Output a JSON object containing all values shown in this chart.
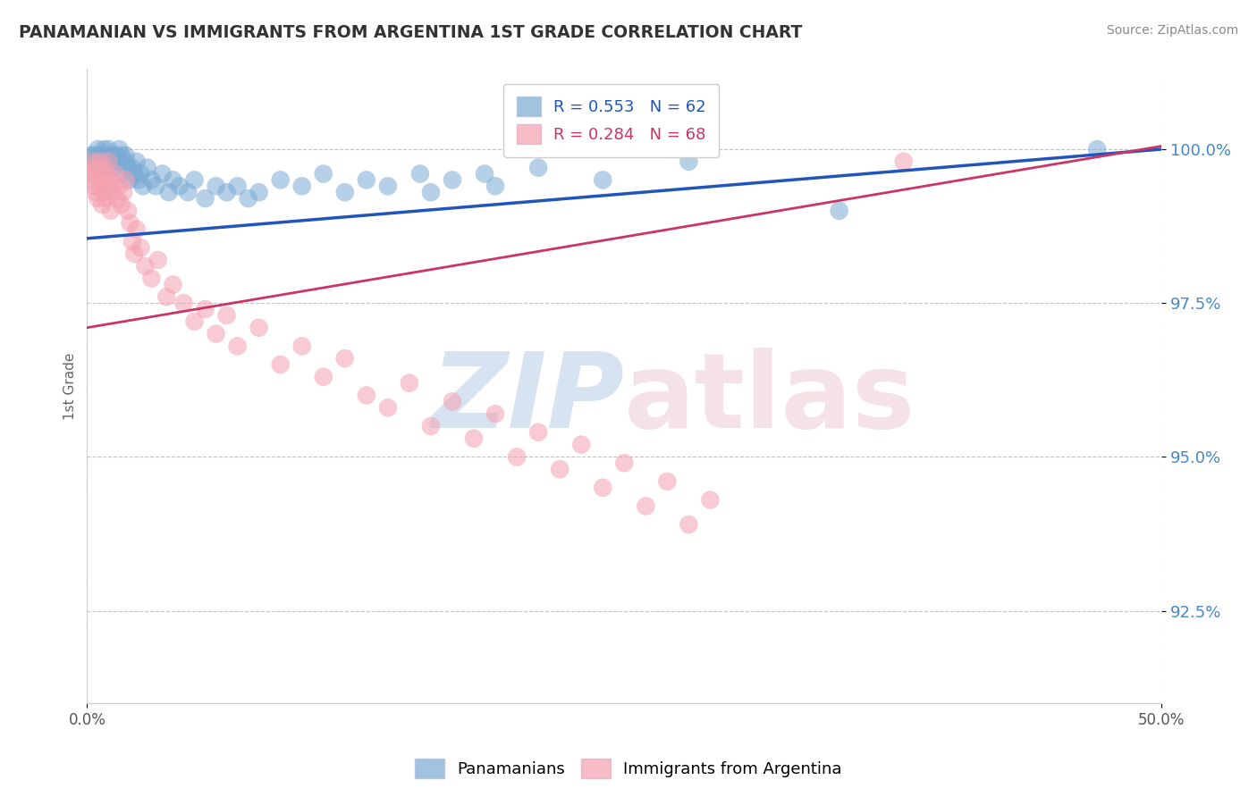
{
  "title": "PANAMANIAN VS IMMIGRANTS FROM ARGENTINA 1ST GRADE CORRELATION CHART",
  "source": "Source: ZipAtlas.com",
  "ylabel": "1st Grade",
  "y_tick_values": [
    92.5,
    95.0,
    97.5,
    100.0
  ],
  "xlim": [
    0.0,
    50.0
  ],
  "ylim": [
    91.0,
    101.3
  ],
  "blue_R": 0.553,
  "blue_N": 62,
  "pink_R": 0.284,
  "pink_N": 68,
  "blue_color": "#7aaad4",
  "pink_color": "#f4a0b0",
  "blue_line_color": "#2255bb",
  "pink_line_color": "#cc3366",
  "blue_scatter_x": [
    0.2,
    0.3,
    0.4,
    0.5,
    0.5,
    0.6,
    0.7,
    0.8,
    0.8,
    0.9,
    1.0,
    1.0,
    1.1,
    1.2,
    1.2,
    1.3,
    1.4,
    1.5,
    1.5,
    1.6,
    1.7,
    1.8,
    1.8,
    1.9,
    2.0,
    2.1,
    2.2,
    2.3,
    2.4,
    2.5,
    2.6,
    2.8,
    3.0,
    3.2,
    3.5,
    3.8,
    4.0,
    4.3,
    4.7,
    5.0,
    5.5,
    6.0,
    6.5,
    7.0,
    7.5,
    8.0,
    9.0,
    10.0,
    11.0,
    12.0,
    13.0,
    14.0,
    15.5,
    16.0,
    17.0,
    18.5,
    19.0,
    21.0,
    24.0,
    28.0,
    35.0,
    47.0
  ],
  "blue_scatter_y": [
    99.9,
    99.9,
    99.8,
    99.9,
    100.0,
    99.9,
    99.8,
    99.9,
    100.0,
    99.7,
    99.8,
    100.0,
    99.9,
    99.7,
    99.9,
    99.8,
    99.9,
    100.0,
    99.8,
    99.9,
    99.6,
    99.8,
    99.9,
    99.7,
    99.5,
    99.7,
    99.6,
    99.8,
    99.5,
    99.6,
    99.4,
    99.7,
    99.5,
    99.4,
    99.6,
    99.3,
    99.5,
    99.4,
    99.3,
    99.5,
    99.2,
    99.4,
    99.3,
    99.4,
    99.2,
    99.3,
    99.5,
    99.4,
    99.6,
    99.3,
    99.5,
    99.4,
    99.6,
    99.3,
    99.5,
    99.6,
    99.4,
    99.7,
    99.5,
    99.8,
    99.0,
    100.0
  ],
  "pink_scatter_x": [
    0.1,
    0.2,
    0.2,
    0.3,
    0.3,
    0.4,
    0.4,
    0.5,
    0.5,
    0.6,
    0.6,
    0.7,
    0.7,
    0.8,
    0.8,
    0.9,
    0.9,
    1.0,
    1.0,
    1.1,
    1.1,
    1.2,
    1.3,
    1.4,
    1.5,
    1.6,
    1.7,
    1.8,
    1.9,
    2.0,
    2.1,
    2.2,
    2.3,
    2.5,
    2.7,
    3.0,
    3.3,
    3.7,
    4.0,
    4.5,
    5.0,
    5.5,
    6.0,
    6.5,
    7.0,
    8.0,
    9.0,
    10.0,
    11.0,
    12.0,
    13.0,
    14.0,
    15.0,
    16.0,
    17.0,
    18.0,
    19.0,
    20.0,
    21.0,
    22.0,
    23.0,
    24.0,
    25.0,
    26.0,
    27.0,
    28.0,
    29.0,
    38.0
  ],
  "pink_scatter_y": [
    99.6,
    99.5,
    99.7,
    99.4,
    99.8,
    99.3,
    99.6,
    99.2,
    99.7,
    99.4,
    99.8,
    99.1,
    99.5,
    99.3,
    99.7,
    99.2,
    99.6,
    99.4,
    99.8,
    99.0,
    99.5,
    99.3,
    99.6,
    99.2,
    99.4,
    99.1,
    99.3,
    99.5,
    99.0,
    98.8,
    98.5,
    98.3,
    98.7,
    98.4,
    98.1,
    97.9,
    98.2,
    97.6,
    97.8,
    97.5,
    97.2,
    97.4,
    97.0,
    97.3,
    96.8,
    97.1,
    96.5,
    96.8,
    96.3,
    96.6,
    96.0,
    95.8,
    96.2,
    95.5,
    95.9,
    95.3,
    95.7,
    95.0,
    95.4,
    94.8,
    95.2,
    94.5,
    94.9,
    94.2,
    94.6,
    93.9,
    94.3,
    99.8
  ]
}
